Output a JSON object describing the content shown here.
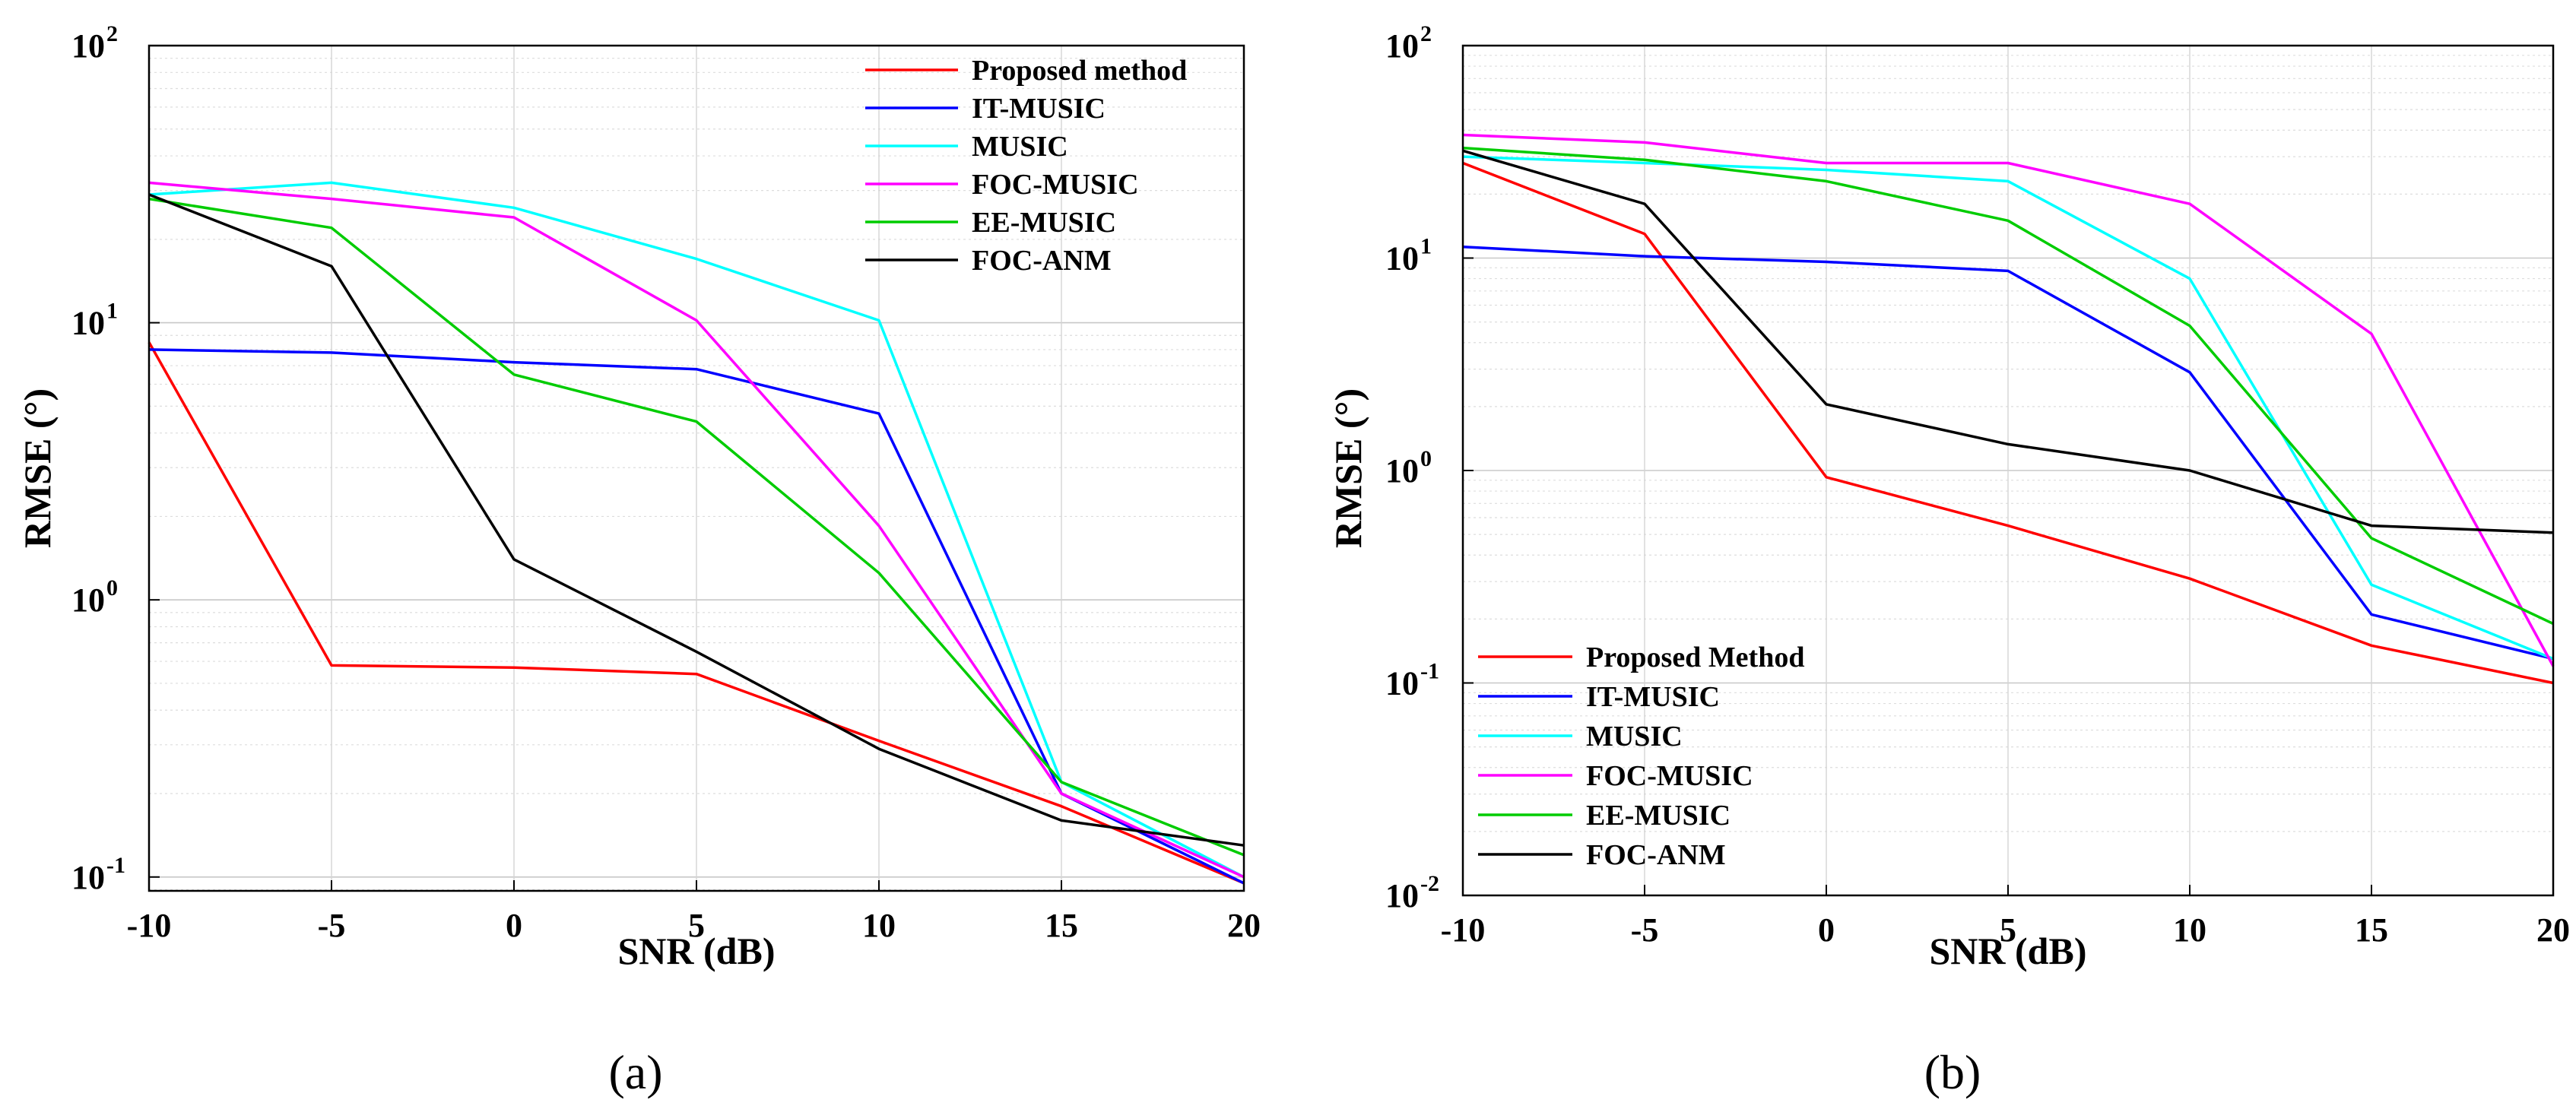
{
  "chart_data": [
    {
      "type": "line",
      "panel": "(a)",
      "caption": "(a)",
      "xlabel": "SNR (dB)",
      "ylabel": "RMSE (°)",
      "yscale": "log",
      "xlim": [
        -10,
        20
      ],
      "ylim_exp": [
        -1.05,
        2
      ],
      "grid": true,
      "legend_position": "top-right",
      "x": [
        -10,
        -5,
        0,
        5,
        10,
        15,
        20
      ],
      "x_ticks": [
        "-10",
        "-5",
        "0",
        "5",
        "10",
        "15",
        "20"
      ],
      "y_ticks": [
        {
          "base": "10",
          "exp": "-1",
          "value": 0.1
        },
        {
          "base": "10",
          "exp": "0",
          "value": 1
        },
        {
          "base": "10",
          "exp": "1",
          "value": 10
        },
        {
          "base": "10",
          "exp": "2",
          "value": 100
        }
      ],
      "series": [
        {
          "name": "Proposed method",
          "color": "#ff0000",
          "values": [
            8.5,
            0.58,
            0.57,
            0.54,
            0.31,
            0.18,
            0.095
          ]
        },
        {
          "name": "IT-MUSIC",
          "color": "#0000ff",
          "values": [
            8.0,
            7.8,
            7.2,
            6.8,
            4.7,
            0.2,
            0.095
          ]
        },
        {
          "name": "MUSIC",
          "color": "#00ffff",
          "values": [
            29,
            32,
            26,
            17,
            10.2,
            0.22,
            0.1
          ]
        },
        {
          "name": "FOC-MUSIC",
          "color": "#ff00ff",
          "values": [
            32,
            28,
            24,
            10.2,
            1.85,
            0.2,
            0.1
          ]
        },
        {
          "name": "EE-MUSIC",
          "color": "#00cc00",
          "values": [
            28,
            22,
            6.5,
            4.4,
            1.25,
            0.22,
            0.12
          ]
        },
        {
          "name": "FOC-ANM",
          "color": "#000000",
          "values": [
            29,
            16,
            1.4,
            0.65,
            0.29,
            0.16,
            0.13
          ]
        }
      ]
    },
    {
      "type": "line",
      "panel": "(b)",
      "caption": "(b)",
      "xlabel": "SNR (dB)",
      "ylabel": "RMSE (°)",
      "yscale": "log",
      "xlim": [
        -10,
        20
      ],
      "ylim_exp": [
        -2,
        2
      ],
      "grid": true,
      "legend_position": "bottom-left",
      "x": [
        -10,
        -5,
        0,
        5,
        10,
        15,
        20
      ],
      "x_ticks": [
        "-10",
        "-5",
        "0",
        "5",
        "10",
        "15",
        "20"
      ],
      "y_ticks": [
        {
          "base": "10",
          "exp": "-2",
          "value": 0.01
        },
        {
          "base": "10",
          "exp": "-1",
          "value": 0.1
        },
        {
          "base": "10",
          "exp": "0",
          "value": 1
        },
        {
          "base": "10",
          "exp": "1",
          "value": 10
        },
        {
          "base": "10",
          "exp": "2",
          "value": 100
        }
      ],
      "series": [
        {
          "name": "Proposed Method",
          "color": "#ff0000",
          "values": [
            28,
            13,
            0.93,
            0.55,
            0.31,
            0.15,
            0.1
          ]
        },
        {
          "name": "IT-MUSIC",
          "color": "#0000ff",
          "values": [
            11.3,
            10.2,
            9.6,
            8.7,
            2.9,
            0.21,
            0.13
          ]
        },
        {
          "name": "MUSIC",
          "color": "#00ffff",
          "values": [
            30,
            28,
            26,
            23,
            8.0,
            0.29,
            0.13
          ]
        },
        {
          "name": "FOC-MUSIC",
          "color": "#ff00ff",
          "values": [
            38,
            35,
            28,
            28,
            18,
            4.4,
            0.12
          ]
        },
        {
          "name": "EE-MUSIC",
          "color": "#00cc00",
          "values": [
            33,
            29,
            23,
            15,
            4.8,
            0.48,
            0.19
          ]
        },
        {
          "name": "FOC-ANM",
          "color": "#000000",
          "values": [
            32,
            18,
            2.05,
            1.33,
            1.0,
            0.55,
            0.51
          ]
        }
      ]
    }
  ]
}
